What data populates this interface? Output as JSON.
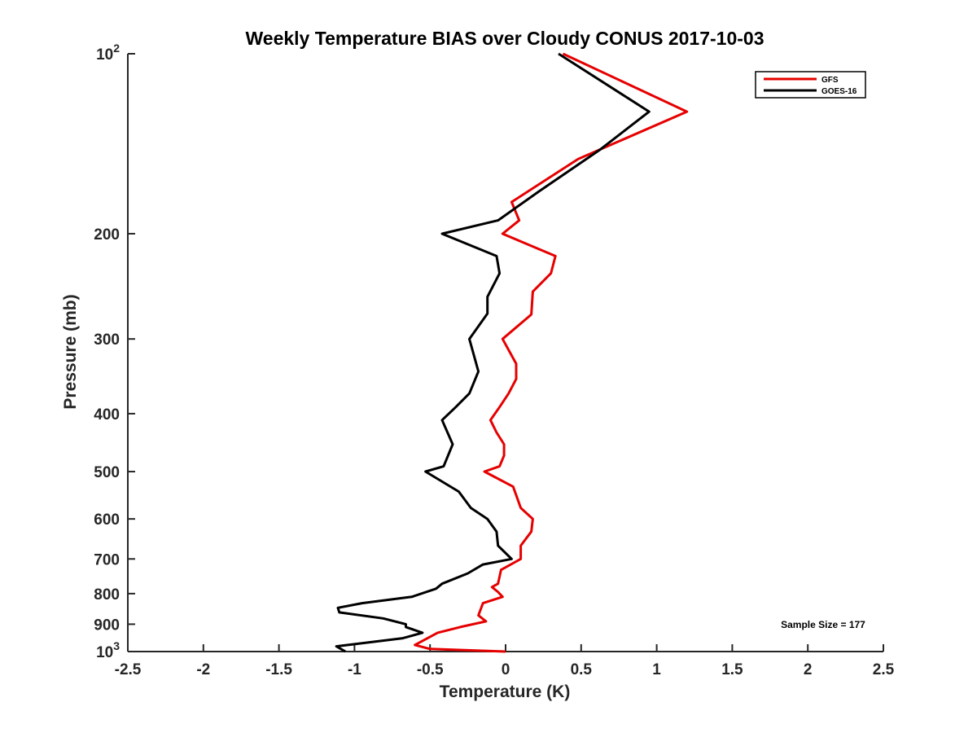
{
  "chart_data": {
    "type": "line",
    "title": "Weekly Temperature BIAS over Cloudy CONUS 2017-10-03",
    "xlabel": "Temperature (K)",
    "ylabel": "Pressure (mb)",
    "xlim": [
      -2.5,
      2.5
    ],
    "ylim": [
      100,
      1000
    ],
    "y_scale": "log",
    "y_reversed": true,
    "grid": false,
    "x_ticks": [
      "-2.5",
      "-2",
      "-1.5",
      "-1",
      "-0.5",
      "0",
      "0.5",
      "1",
      "1.5",
      "2",
      "2.5"
    ],
    "x_tick_values": [
      -2.5,
      -2,
      -1.5,
      -1,
      -0.5,
      0,
      0.5,
      1,
      1.5,
      2,
      2.5
    ],
    "y_ticks": [
      {
        "value": 100,
        "base": "10",
        "exp": "2"
      },
      {
        "value": 200,
        "label": "200"
      },
      {
        "value": 300,
        "label": "300"
      },
      {
        "value": 400,
        "label": "400"
      },
      {
        "value": 500,
        "label": "500"
      },
      {
        "value": 600,
        "label": "600"
      },
      {
        "value": 700,
        "label": "700"
      },
      {
        "value": 800,
        "label": "800"
      },
      {
        "value": 900,
        "label": "900"
      },
      {
        "value": 1000,
        "base": "10",
        "exp": "3"
      }
    ],
    "legend_position": "top-right",
    "series": [
      {
        "name": "GFS",
        "color": "#e60000",
        "points": [
          [
            0.38,
            100
          ],
          [
            1.2,
            125
          ],
          [
            0.48,
            150
          ],
          [
            0.04,
            177
          ],
          [
            0.09,
            190
          ],
          [
            -0.02,
            200
          ],
          [
            0.33,
            218
          ],
          [
            0.3,
            233
          ],
          [
            0.18,
            250
          ],
          [
            0.17,
            273
          ],
          [
            -0.02,
            300
          ],
          [
            0.07,
            330
          ],
          [
            0.07,
            350
          ],
          [
            0.02,
            370
          ],
          [
            -0.04,
            390
          ],
          [
            -0.1,
            410
          ],
          [
            -0.06,
            430
          ],
          [
            -0.01,
            450
          ],
          [
            -0.01,
            470
          ],
          [
            -0.04,
            490
          ],
          [
            -0.14,
            500
          ],
          [
            0.05,
            530
          ],
          [
            0.1,
            575
          ],
          [
            0.18,
            600
          ],
          [
            0.17,
            630
          ],
          [
            0.1,
            665
          ],
          [
            0.1,
            700
          ],
          [
            -0.03,
            730
          ],
          [
            -0.05,
            770
          ],
          [
            -0.09,
            780
          ],
          [
            -0.05,
            795
          ],
          [
            -0.02,
            810
          ],
          [
            -0.15,
            830
          ],
          [
            -0.18,
            870
          ],
          [
            -0.13,
            890
          ],
          [
            -0.3,
            910
          ],
          [
            -0.45,
            930
          ],
          [
            -0.6,
            975
          ],
          [
            -0.5,
            990
          ],
          [
            0,
            1000
          ]
        ]
      },
      {
        "name": "GOES-16",
        "color": "#000000",
        "points": [
          [
            0.35,
            100
          ],
          [
            0.95,
            125
          ],
          [
            0.62,
            145
          ],
          [
            0.22,
            170
          ],
          [
            -0.05,
            190
          ],
          [
            -0.42,
            200
          ],
          [
            -0.06,
            218
          ],
          [
            -0.04,
            233
          ],
          [
            -0.12,
            255
          ],
          [
            -0.12,
            272
          ],
          [
            -0.24,
            300
          ],
          [
            -0.18,
            340
          ],
          [
            -0.24,
            370
          ],
          [
            -0.33,
            390
          ],
          [
            -0.42,
            410
          ],
          [
            -0.35,
            450
          ],
          [
            -0.41,
            490
          ],
          [
            -0.53,
            500
          ],
          [
            -0.31,
            540
          ],
          [
            -0.23,
            575
          ],
          [
            -0.12,
            600
          ],
          [
            -0.06,
            630
          ],
          [
            -0.05,
            665
          ],
          [
            0.04,
            700
          ],
          [
            -0.15,
            715
          ],
          [
            -0.25,
            740
          ],
          [
            -0.42,
            770
          ],
          [
            -0.46,
            785
          ],
          [
            -0.62,
            810
          ],
          [
            -0.95,
            830
          ],
          [
            -1.11,
            845
          ],
          [
            -1.1,
            860
          ],
          [
            -0.81,
            880
          ],
          [
            -0.66,
            900
          ],
          [
            -0.66,
            910
          ],
          [
            -0.55,
            930
          ],
          [
            -0.68,
            950
          ],
          [
            -1.12,
            980
          ],
          [
            -1.06,
            1000
          ]
        ]
      }
    ],
    "annotation": "Sample Size = 177"
  }
}
